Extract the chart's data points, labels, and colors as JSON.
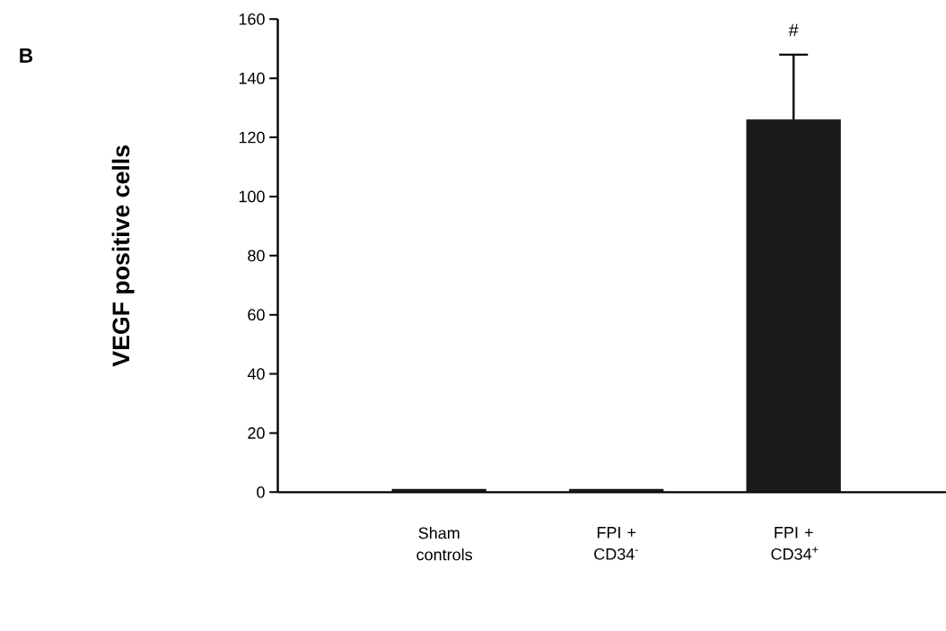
{
  "chart_data": {
    "type": "bar",
    "ylabel": "VEGF positive cells",
    "categories": [
      "Sham controls",
      "FPI + CD34$^{-}$",
      "FPI + CD34$^{+}$"
    ],
    "values": [
      1,
      1,
      126
    ],
    "errors": [
      null,
      null,
      22
    ],
    "color": "#1a1a1a",
    "ylim": [
      0,
      160
    ],
    "yticks": [
      0,
      20,
      40,
      60,
      80,
      100,
      120,
      140,
      160
    ],
    "annotations": [
      "B",
      "#"
    ]
  }
}
